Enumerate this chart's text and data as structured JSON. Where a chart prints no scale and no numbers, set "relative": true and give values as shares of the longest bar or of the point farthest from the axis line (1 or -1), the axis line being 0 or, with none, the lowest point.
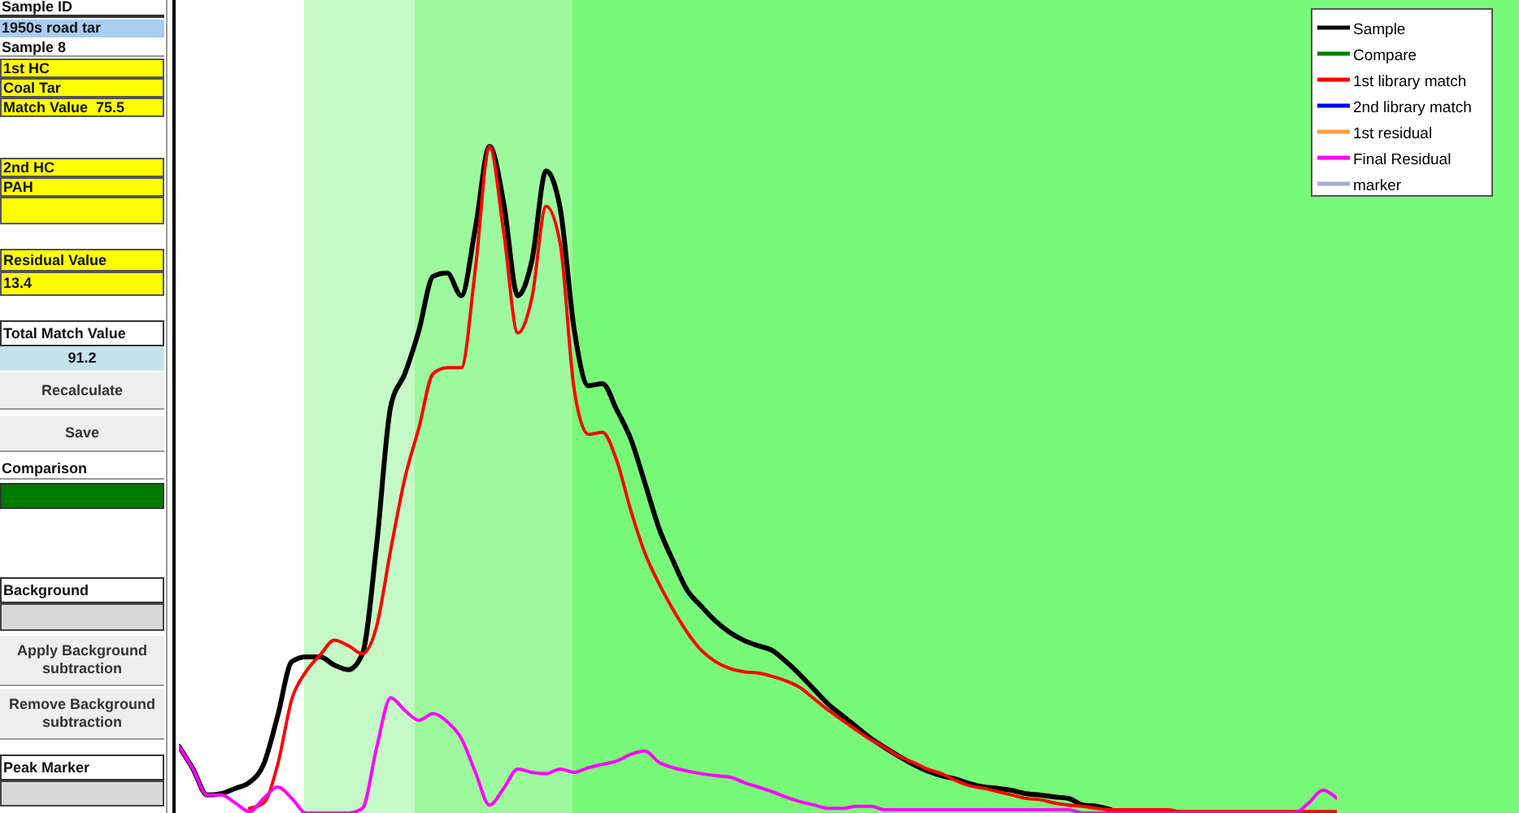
{
  "chart_data": [
    {
      "type": "other",
      "annotations": [
        "Sample ID",
        "1950s road tar",
        "Sample 8",
        "1st HC",
        "Coal Tar",
        "Match Value  75.5",
        "2nd HC",
        "PAH",
        "Residual Value",
        "13.4",
        "Total Match Value",
        "91.2",
        "Recalculate",
        "Save",
        "Comparison",
        "Background",
        "Apply Background subtraction",
        "Remove Background subtraction",
        "Peak Marker"
      ]
    },
    {
      "type": "line",
      "relative": true,
      "legend": "top right",
      "categories": [
        null,
        null,
        null,
        null,
        null,
        null,
        null,
        null,
        null,
        null,
        null,
        null,
        null,
        null,
        null,
        null,
        null,
        null,
        null,
        null,
        null,
        null,
        null,
        null,
        null,
        null,
        null,
        null,
        null,
        null,
        null,
        null,
        null,
        null,
        null,
        null,
        null,
        null,
        null,
        null,
        null,
        null,
        null,
        null,
        null,
        null,
        null,
        null,
        null,
        null,
        null,
        null,
        null,
        null,
        null,
        null,
        null,
        null,
        null,
        null,
        null,
        null,
        null,
        null,
        null,
        null,
        null,
        null,
        null,
        null,
        null,
        null,
        null,
        null,
        null,
        null,
        null,
        null,
        null,
        null,
        null,
        null,
        null
      ],
      "series": [
        {
          "name": "Sample",
          "color": "#000000",
          "values": [
            0.1,
            0.066,
            0.027,
            0.029,
            0.037,
            0.046,
            0.073,
            0.146,
            0.227,
            0.234,
            0.234,
            0.222,
            0.215,
            0.239,
            0.402,
            0.61,
            0.659,
            0.724,
            0.805,
            0.81,
            0.776,
            0.878,
            1,
            0.915,
            0.776,
            0.829,
            0.963,
            0.907,
            0.724,
            0.641,
            0.644,
            0.605,
            0.561,
            0.495,
            0.427,
            0.378,
            0.334,
            0.31,
            0.288,
            0.271,
            0.259,
            0.251,
            0.244,
            0.227,
            0.207,
            0.185,
            0.163,
            0.146,
            0.129,
            0.112,
            0.098,
            0.085,
            0.073,
            0.063,
            0.056,
            0.051,
            0.044,
            0.039,
            0.037,
            0.034,
            0.029,
            0.027,
            0.024,
            0.022,
            0.012,
            0.01,
            0.005,
            null,
            null,
            null,
            null,
            null,
            null,
            null,
            null,
            null,
            null,
            null,
            null,
            null,
            null,
            null,
            null
          ]
        },
        {
          "name": "Compare",
          "color": "#008000",
          "values": [
            null,
            null,
            null,
            null,
            null,
            null,
            null,
            null,
            null,
            null,
            null,
            null,
            null,
            null,
            null,
            null,
            null,
            null,
            null,
            null,
            null,
            null,
            null,
            null,
            null,
            null,
            null,
            null,
            null,
            null,
            null,
            null,
            null,
            null,
            null,
            null,
            null,
            null,
            null,
            null,
            null,
            null,
            null,
            null,
            null,
            null,
            null,
            null,
            null,
            null,
            null,
            null,
            null,
            null,
            null,
            null,
            null,
            null,
            null,
            null,
            null,
            null,
            null,
            null,
            null,
            null,
            null,
            null,
            null,
            null,
            null,
            null,
            null,
            null,
            null,
            null,
            null,
            null,
            null,
            null,
            null,
            null,
            null
          ]
        },
        {
          "name": "1st library match",
          "color": "#ff0000",
          "values": [
            null,
            null,
            null,
            null,
            null,
            0.007,
            0.015,
            0.073,
            0.171,
            0.212,
            0.237,
            0.259,
            0.251,
            0.239,
            0.28,
            0.395,
            0.502,
            0.578,
            0.659,
            0.668,
            0.668,
            0.817,
            1,
            0.871,
            0.72,
            0.773,
            0.91,
            0.854,
            0.634,
            0.568,
            0.571,
            0.529,
            0.454,
            0.39,
            0.344,
            0.305,
            0.271,
            0.244,
            0.227,
            0.217,
            0.212,
            0.21,
            0.205,
            0.198,
            0.188,
            0.171,
            0.154,
            0.139,
            0.124,
            0.11,
            0.098,
            0.085,
            0.076,
            0.066,
            0.059,
            0.049,
            0.041,
            0.037,
            0.032,
            0.027,
            0.022,
            0.02,
            0.015,
            0.012,
            0.01,
            0.007,
            0.005,
            0.005,
            0.005,
            0.005,
            0.005,
            0.002,
            0.002,
            0.002,
            0.002,
            0.002,
            0.002,
            0.002,
            0.002,
            0.002,
            0.002,
            0.002,
            0.002
          ]
        },
        {
          "name": "2nd library match",
          "color": "#0000ff",
          "values": [
            null,
            null,
            null,
            null,
            null,
            null,
            null,
            null,
            null,
            null,
            null,
            null,
            null,
            null,
            null,
            null,
            null,
            null,
            null,
            null,
            null,
            null,
            null,
            null,
            null,
            null,
            null,
            null,
            null,
            null,
            null,
            null,
            null,
            null,
            null,
            null,
            null,
            null,
            null,
            null,
            null,
            null,
            null,
            null,
            null,
            null,
            null,
            null,
            null,
            null,
            null,
            null,
            null,
            null,
            null,
            null,
            null,
            null,
            null,
            null,
            null,
            null,
            null,
            null,
            null,
            null,
            null,
            null,
            null,
            null,
            null,
            null,
            null,
            null,
            null,
            null,
            null,
            null,
            null,
            null,
            null,
            null,
            null
          ]
        },
        {
          "name": "1st residual",
          "color": "#f5a040",
          "values": [
            null,
            null,
            null,
            null,
            null,
            null,
            null,
            null,
            null,
            null,
            null,
            null,
            null,
            null,
            null,
            null,
            null,
            null,
            null,
            null,
            null,
            null,
            null,
            null,
            null,
            null,
            null,
            null,
            null,
            null,
            null,
            null,
            null,
            null,
            null,
            null,
            null,
            null,
            null,
            null,
            null,
            null,
            null,
            null,
            null,
            null,
            null,
            null,
            null,
            null,
            null,
            null,
            null,
            null,
            null,
            null,
            null,
            null,
            null,
            null,
            null,
            null,
            null,
            null,
            null,
            null,
            null,
            null,
            null,
            null,
            null,
            null,
            null,
            null,
            null,
            null,
            null,
            null,
            null,
            null,
            null,
            null,
            null
          ]
        },
        {
          "name": "Final Residual",
          "color": "#ff00ff",
          "values": [
            0.1,
            0.066,
            0.027,
            0.027,
            0.015,
            0.002,
            0.022,
            0.039,
            0.022,
            0,
            0,
            0,
            0,
            0.007,
            0.098,
            0.173,
            0.154,
            0.139,
            0.149,
            0.137,
            0.112,
            0.061,
            0.012,
            0.037,
            0.066,
            0.061,
            0.059,
            0.066,
            0.061,
            0.068,
            0.073,
            0.078,
            0.088,
            0.093,
            0.076,
            0.068,
            0.063,
            0.059,
            0.056,
            0.054,
            0.046,
            0.039,
            0.032,
            0.024,
            0.017,
            0.012,
            0.007,
            0.007,
            0.01,
            0.01,
            0.005,
            0.005,
            0.005,
            0.005,
            0.005,
            0.005,
            0.005,
            0.005,
            0.005,
            0.005,
            0.005,
            0.005,
            0.005,
            0.005,
            0,
            0,
            0,
            0,
            0,
            0,
            0,
            0,
            0,
            0,
            0,
            0,
            0,
            0,
            0,
            0,
            0.015,
            0.034,
            0.022
          ]
        },
        {
          "name": "marker",
          "color": "#a0b0d0",
          "values": [
            null,
            null,
            null,
            null,
            null,
            null,
            null,
            null,
            null,
            null,
            null,
            null,
            null,
            null,
            null,
            null,
            null,
            null,
            null,
            null,
            null,
            null,
            null,
            null,
            null,
            null,
            null,
            null,
            null,
            null,
            null,
            null,
            null,
            null,
            null,
            null,
            null,
            null,
            null,
            null,
            null,
            null,
            null,
            null,
            null,
            null,
            null,
            null,
            null,
            null,
            null,
            null,
            null,
            null,
            null,
            null,
            null,
            null,
            null,
            null,
            null,
            null,
            null,
            null,
            null,
            null,
            null,
            null,
            null,
            null,
            null,
            null,
            null,
            null,
            null,
            null,
            null,
            null,
            null,
            null,
            null,
            null,
            null
          ]
        }
      ]
    }
  ]
}
